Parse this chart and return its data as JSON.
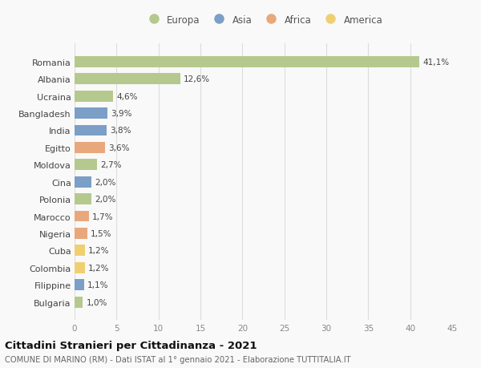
{
  "countries": [
    "Romania",
    "Albania",
    "Ucraina",
    "Bangladesh",
    "India",
    "Egitto",
    "Moldova",
    "Cina",
    "Polonia",
    "Marocco",
    "Nigeria",
    "Cuba",
    "Colombia",
    "Filippine",
    "Bulgaria"
  ],
  "values": [
    41.1,
    12.6,
    4.6,
    3.9,
    3.8,
    3.6,
    2.7,
    2.0,
    2.0,
    1.7,
    1.5,
    1.2,
    1.2,
    1.1,
    1.0
  ],
  "labels": [
    "41,1%",
    "12,6%",
    "4,6%",
    "3,9%",
    "3,8%",
    "3,6%",
    "2,7%",
    "2,0%",
    "2,0%",
    "1,7%",
    "1,5%",
    "1,2%",
    "1,2%",
    "1,1%",
    "1,0%"
  ],
  "continent": [
    "Europa",
    "Europa",
    "Europa",
    "Asia",
    "Asia",
    "Africa",
    "Europa",
    "Asia",
    "Europa",
    "Africa",
    "Africa",
    "America",
    "America",
    "Asia",
    "Europa"
  ],
  "colors": {
    "Europa": "#b5c98e",
    "Asia": "#7b9fc7",
    "Africa": "#e8a87c",
    "America": "#f0cf72"
  },
  "legend_order": [
    "Europa",
    "Asia",
    "Africa",
    "America"
  ],
  "legend_colors": [
    "#b5c98e",
    "#7b9fc7",
    "#e8a87c",
    "#f0cf72"
  ],
  "xlim": [
    0,
    45
  ],
  "xticks": [
    0,
    5,
    10,
    15,
    20,
    25,
    30,
    35,
    40,
    45
  ],
  "title": "Cittadini Stranieri per Cittadinanza - 2021",
  "subtitle": "COMUNE DI MARINO (RM) - Dati ISTAT al 1° gennaio 2021 - Elaborazione TUTTITALIA.IT",
  "bg_color": "#f9f9f9",
  "grid_color": "#dddddd"
}
